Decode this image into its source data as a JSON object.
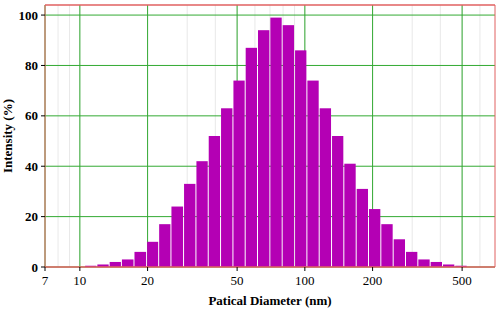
{
  "chart_data": {
    "type": "histogram",
    "x_label": "Patical Diameter (nm)",
    "y_label": "Intensity (%)",
    "bins": [
      10.5,
      11.9,
      13.5,
      15.3,
      17.4,
      19.8,
      22.4,
      25.4,
      28.9,
      32.8,
      37.2,
      42.2,
      47.9,
      54.3,
      61.6,
      69.9,
      79.3,
      90.0,
      102.1,
      115.8,
      131.4,
      149.0,
      169.1,
      191.8,
      217.6,
      246.9,
      280.1,
      317.8,
      360.5,
      409.0,
      464.0,
      526.4
    ],
    "values": [
      0.5,
      1,
      2,
      3,
      6,
      10,
      17,
      24,
      33,
      42,
      52,
      63,
      74,
      87,
      94,
      99,
      96,
      86,
      74,
      63,
      52,
      41,
      31,
      23,
      17,
      11,
      6,
      3,
      2,
      1,
      0.5
    ],
    "color": "#b400b4",
    "log": "x",
    "xlim": [
      7,
      700
    ],
    "xticks": [
      7,
      10,
      20,
      50,
      100,
      200,
      500
    ],
    "ylim": [
      0,
      104
    ],
    "yticks": [
      0,
      20,
      40,
      60,
      80,
      100
    ],
    "grid": true
  }
}
